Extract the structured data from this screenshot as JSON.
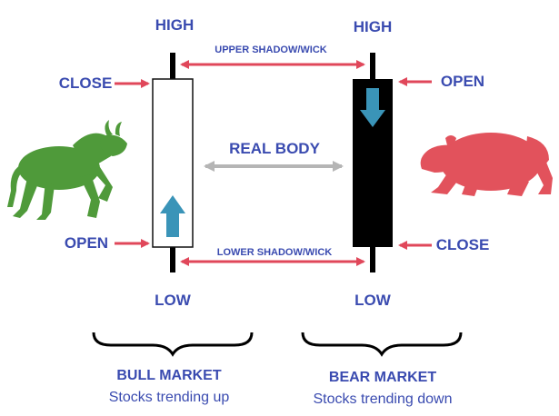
{
  "bull": {
    "high_label": "HIGH",
    "close_label": "CLOSE",
    "open_label": "OPEN",
    "low_label": "LOW",
    "market_title": "BULL MARKET",
    "market_subtitle": "Stocks trending up"
  },
  "bear": {
    "high_label": "HIGH",
    "open_label": "OPEN",
    "close_label": "CLOSE",
    "low_label": "LOW",
    "market_title": "BEAR MARKET",
    "market_subtitle": "Stocks trending down"
  },
  "center": {
    "upper_shadow_label": "UPPER SHADOW/WICK",
    "real_body_label": "REAL BODY",
    "lower_shadow_label": "LOWER SHADOW/WICK"
  },
  "colors": {
    "label_blue": "#3a4bb0",
    "arrow_red": "#e0475a",
    "arrow_gray": "#b5b5b5",
    "up_arrow_teal": "#3a94b8",
    "bull_green": "#4f9a3a",
    "bear_red": "#e2525c"
  }
}
